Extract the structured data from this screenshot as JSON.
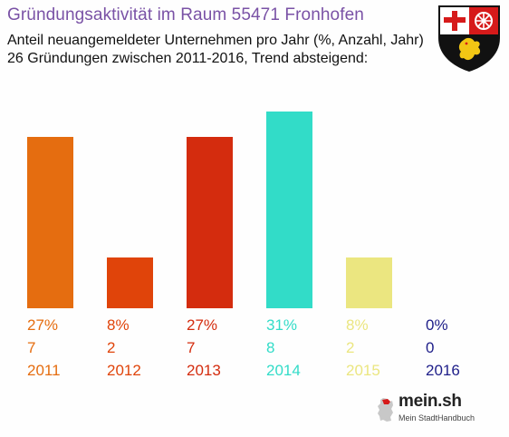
{
  "header": {
    "title": "Gründungsaktivität im Raum 55471 Fronhofen",
    "subtitle_line1": "Anteil neuangemeldeter Unternehmen pro Jahr (%, Anzahl, Jahr)",
    "subtitle_line2": "26 Gründungen zwischen 2011-2016, Trend absteigend:"
  },
  "crest": {
    "icon": "rhineland-palatinate-coat-of-arms-icon"
  },
  "logo": {
    "name": "mein.sh",
    "tagline": "Mein StadtHandbuch",
    "icon": "germany-map-icon"
  },
  "chart_data": {
    "type": "bar",
    "categories": [
      "2011",
      "2012",
      "2013",
      "2014",
      "2015",
      "2016"
    ],
    "values": [
      27,
      8,
      27,
      31,
      8,
      0
    ],
    "percent_labels": [
      "27%",
      "8%",
      "27%",
      "31%",
      "8%",
      "0%"
    ],
    "counts": [
      7,
      2,
      7,
      8,
      2,
      0
    ],
    "colors": [
      "#e56d10",
      "#e0440a",
      "#d42c0e",
      "#32dcc8",
      "#ebe680",
      "#20208a"
    ],
    "ylim": [
      0,
      31
    ],
    "grid": false,
    "legend": "none"
  }
}
